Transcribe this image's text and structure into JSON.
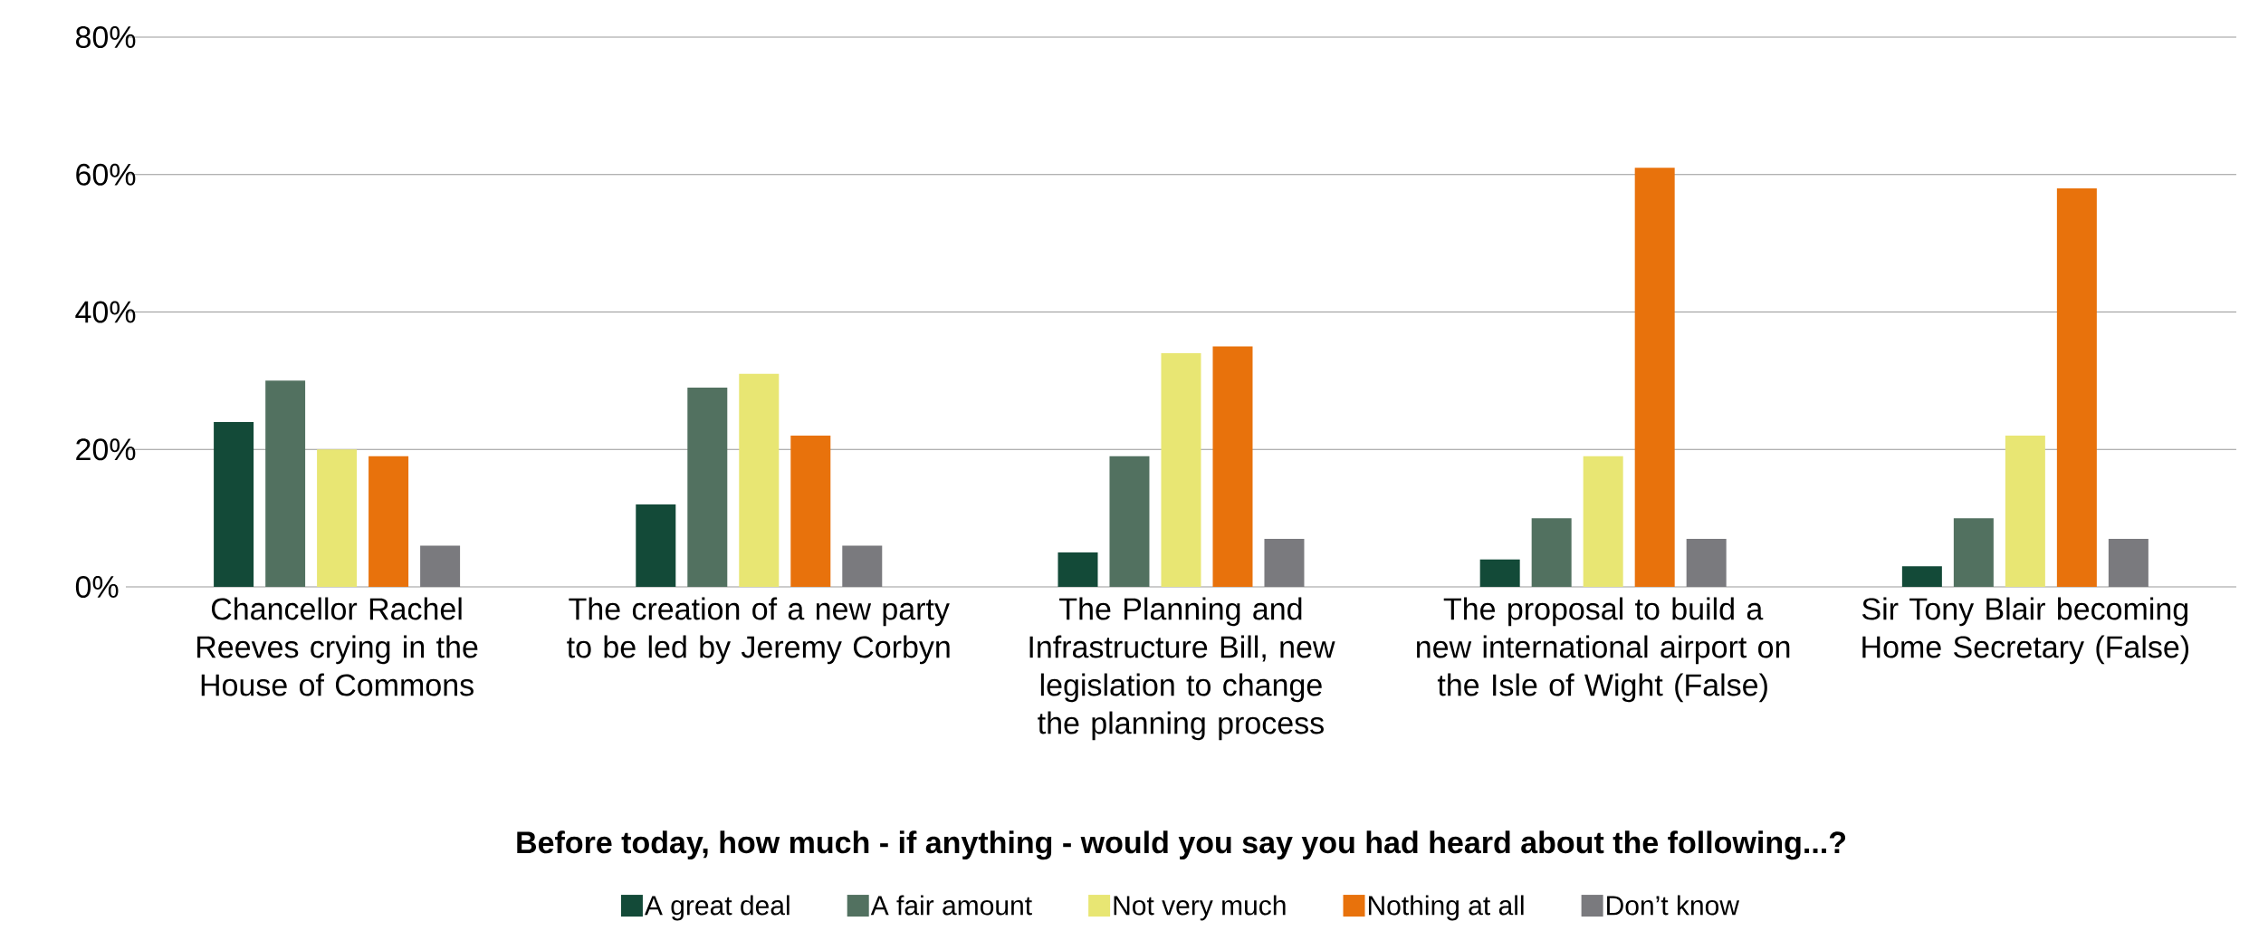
{
  "chart_data": {
    "type": "bar",
    "xlabel": "Before today, how much - if anything - would you say you had heard about the following...?",
    "categories": [
      "Chancellor Rachel Reeves crying in the House of Commons",
      "The creation of a new party to be led by Jeremy Corbyn",
      "The Planning and Infrastructure Bill, new legislation to change the planning process",
      "The proposal to build a new international airport on the Isle of Wight (False)",
      "Sir Tony Blair becoming Home Secretary (False)"
    ],
    "series": [
      {
        "name": "A great deal",
        "color": "#134a38",
        "values": [
          24,
          12,
          5,
          4,
          3
        ]
      },
      {
        "name": "A fair amount",
        "color": "#527160",
        "values": [
          30,
          29,
          19,
          10,
          10
        ]
      },
      {
        "name": "Not very much",
        "color": "#e8e673",
        "values": [
          20,
          31,
          34,
          19,
          22
        ]
      },
      {
        "name": "Nothing at all",
        "color": "#e8720c",
        "values": [
          19,
          22,
          35,
          61,
          58
        ]
      },
      {
        "name": "Don’t know",
        "color": "#7a7a7e",
        "values": [
          6,
          6,
          7,
          7,
          7
        ]
      }
    ],
    "ylim": [
      0,
      80
    ],
    "yticks": [
      {
        "value": 0,
        "label": "0%"
      },
      {
        "value": 20,
        "label": "20%"
      },
      {
        "value": 40,
        "label": "40%"
      },
      {
        "value": 60,
        "label": "60%"
      },
      {
        "value": 80,
        "label": "80%"
      }
    ],
    "grid": "y",
    "legend": "bottom"
  }
}
